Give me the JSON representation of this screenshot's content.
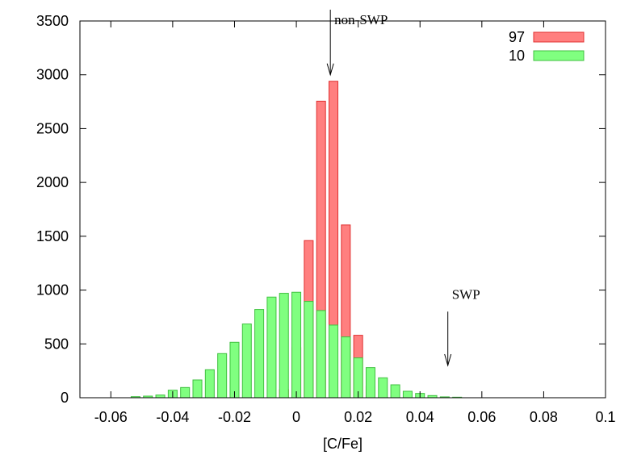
{
  "chart_data": {
    "type": "bar",
    "xlabel": "[C/Fe]",
    "ylabel": "",
    "xlim": [
      -0.07,
      0.1
    ],
    "ylim": [
      0,
      3500
    ],
    "x_ticks": [
      "-0.06",
      "-0.04",
      "-0.02",
      "0",
      "0.02",
      "0.04",
      "0.06",
      "0.08",
      "0.1"
    ],
    "y_ticks": [
      "0",
      "500",
      "1000",
      "1500",
      "2000",
      "2500",
      "3000",
      "3500"
    ],
    "grid": false,
    "legend_position": "top-right",
    "bin_centers": [
      -0.052,
      -0.048,
      -0.044,
      -0.04,
      -0.036,
      -0.032,
      -0.028,
      -0.024,
      -0.02,
      -0.016,
      -0.012,
      -0.008,
      -0.004,
      0.0,
      0.004,
      0.008,
      0.012,
      0.016,
      0.02,
      0.024,
      0.028,
      0.032,
      0.036,
      0.04,
      0.044,
      0.048,
      0.052,
      0.056,
      0.06,
      0.064,
      0.068,
      0.072,
      0.076
    ],
    "series": [
      {
        "name": "97",
        "color": "#ff7f7f",
        "stroke": "#e03030",
        "values": [
          0,
          0,
          0,
          0,
          0,
          0,
          0,
          0,
          0,
          0,
          0,
          5,
          75,
          465,
          1460,
          2755,
          2940,
          1605,
          580,
          105,
          5,
          0,
          0,
          0,
          0,
          0,
          0,
          0,
          0,
          0,
          0,
          0,
          0
        ]
      },
      {
        "name": "10",
        "color": "#80ff80",
        "stroke": "#40c040",
        "values": [
          10,
          15,
          25,
          70,
          95,
          165,
          260,
          410,
          515,
          685,
          820,
          935,
          970,
          980,
          895,
          810,
          675,
          565,
          370,
          280,
          185,
          120,
          60,
          40,
          20,
          8,
          5,
          0,
          0,
          0,
          0,
          0,
          0
        ]
      }
    ],
    "annotations": [
      {
        "label": "non-SWP",
        "x": 0.011,
        "y_from": 3650,
        "y_to": 3000
      },
      {
        "label": "SWP",
        "x": 0.049,
        "y_from": 800,
        "y_to": 300
      }
    ]
  }
}
